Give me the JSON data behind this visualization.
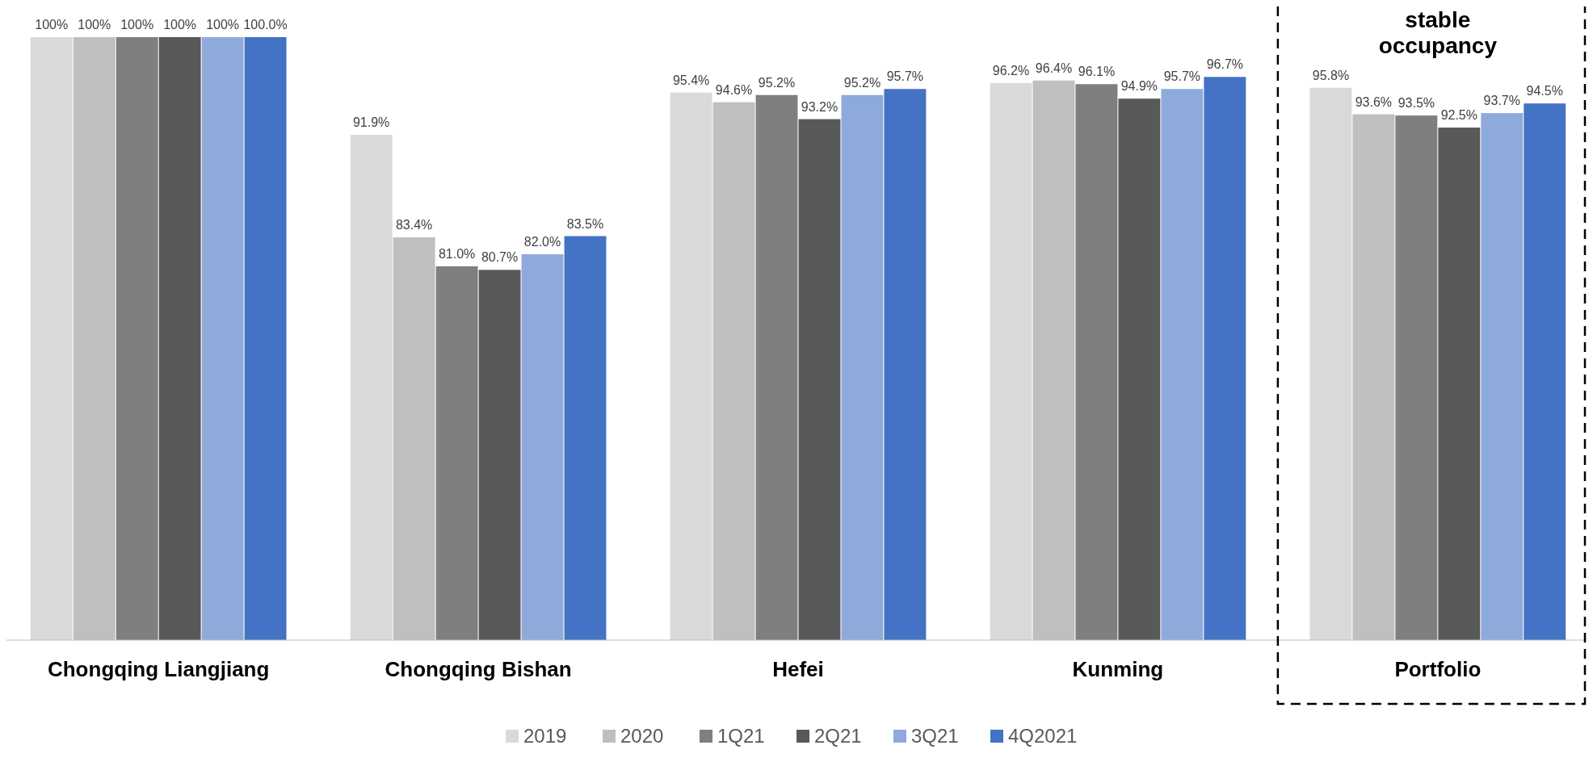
{
  "chart_data": {
    "type": "bar",
    "categories": [
      "Chongqing Liangjiang",
      "Chongqing Bishan",
      "Hefei",
      "Kunming",
      "Portfolio"
    ],
    "ylim": [
      50,
      100
    ],
    "tick_labels": "x",
    "legend": "bottom",
    "grid": false,
    "annotations": [
      "stable occupancy"
    ],
    "series": [
      {
        "name": "2019",
        "color": "#d9d9d9",
        "values": [
          100,
          91.9,
          95.4,
          96.2,
          95.8
        ],
        "value_labels": [
          "100%",
          "91.9%",
          "95.4%",
          "96.2%",
          "95.8%"
        ]
      },
      {
        "name": "2020",
        "color": "#bfbfbf",
        "values": [
          100,
          83.4,
          94.6,
          96.4,
          93.6
        ],
        "value_labels": [
          "100%",
          "83.4%",
          "94.6%",
          "96.4%",
          "93.6%"
        ]
      },
      {
        "name": "1Q21",
        "color": "#7f7f7f",
        "values": [
          100,
          81.0,
          95.2,
          96.1,
          93.5
        ],
        "value_labels": [
          "100%",
          "81.0%",
          "95.2%",
          "96.1%",
          "93.5%"
        ]
      },
      {
        "name": "2Q21",
        "color": "#595959",
        "values": [
          100,
          80.7,
          93.2,
          94.9,
          92.5
        ],
        "value_labels": [
          "100%",
          "80.7%",
          "93.2%",
          "94.9%",
          "92.5%"
        ]
      },
      {
        "name": "3Q21",
        "color": "#8eaadb",
        "values": [
          100,
          82.0,
          95.2,
          95.7,
          93.7
        ],
        "value_labels": [
          "100%",
          "82.0%",
          "95.2%",
          "95.7%",
          "93.7%"
        ]
      },
      {
        "name": "4Q2021",
        "color": "#4472c4",
        "values": [
          100,
          83.5,
          95.7,
          96.7,
          94.5
        ],
        "value_labels": [
          "100.0%",
          "83.5%",
          "95.7%",
          "96.7%",
          "94.5%"
        ]
      }
    ]
  }
}
